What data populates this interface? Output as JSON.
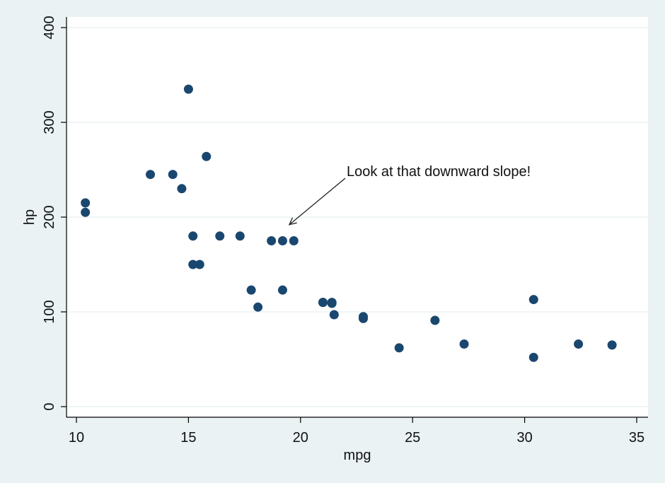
{
  "chart_data": {
    "type": "scatter",
    "title": "",
    "xlabel": "mpg",
    "ylabel": "hp",
    "xlim": [
      10,
      35
    ],
    "ylim": [
      0,
      400
    ],
    "x_ticks": [
      "10",
      "15",
      "20",
      "25",
      "30",
      "35"
    ],
    "y_ticks": [
      "0",
      "100",
      "200",
      "300",
      "400"
    ],
    "grid": "horizontal",
    "legend": "none",
    "marker_color": "#1a476f",
    "annotation": {
      "text": "Look at that downward slope!",
      "arrow_to": {
        "x": 19.5,
        "y": 192
      }
    },
    "points": [
      {
        "x": 21.0,
        "y": 110
      },
      {
        "x": 21.0,
        "y": 110
      },
      {
        "x": 22.8,
        "y": 93
      },
      {
        "x": 21.4,
        "y": 110
      },
      {
        "x": 18.7,
        "y": 175
      },
      {
        "x": 18.1,
        "y": 105
      },
      {
        "x": 14.3,
        "y": 245
      },
      {
        "x": 24.4,
        "y": 62
      },
      {
        "x": 22.8,
        "y": 95
      },
      {
        "x": 19.2,
        "y": 123
      },
      {
        "x": 17.8,
        "y": 123
      },
      {
        "x": 16.4,
        "y": 180
      },
      {
        "x": 17.3,
        "y": 180
      },
      {
        "x": 15.2,
        "y": 180
      },
      {
        "x": 10.4,
        "y": 205
      },
      {
        "x": 10.4,
        "y": 215
      },
      {
        "x": 14.7,
        "y": 230
      },
      {
        "x": 32.4,
        "y": 66
      },
      {
        "x": 30.4,
        "y": 52
      },
      {
        "x": 33.9,
        "y": 65
      },
      {
        "x": 21.5,
        "y": 97
      },
      {
        "x": 15.5,
        "y": 150
      },
      {
        "x": 15.2,
        "y": 150
      },
      {
        "x": 13.3,
        "y": 245
      },
      {
        "x": 19.2,
        "y": 175
      },
      {
        "x": 27.3,
        "y": 66
      },
      {
        "x": 26.0,
        "y": 91
      },
      {
        "x": 30.4,
        "y": 113
      },
      {
        "x": 15.8,
        "y": 264
      },
      {
        "x": 19.7,
        "y": 175
      },
      {
        "x": 15.0,
        "y": 335
      },
      {
        "x": 21.4,
        "y": 109
      }
    ]
  }
}
